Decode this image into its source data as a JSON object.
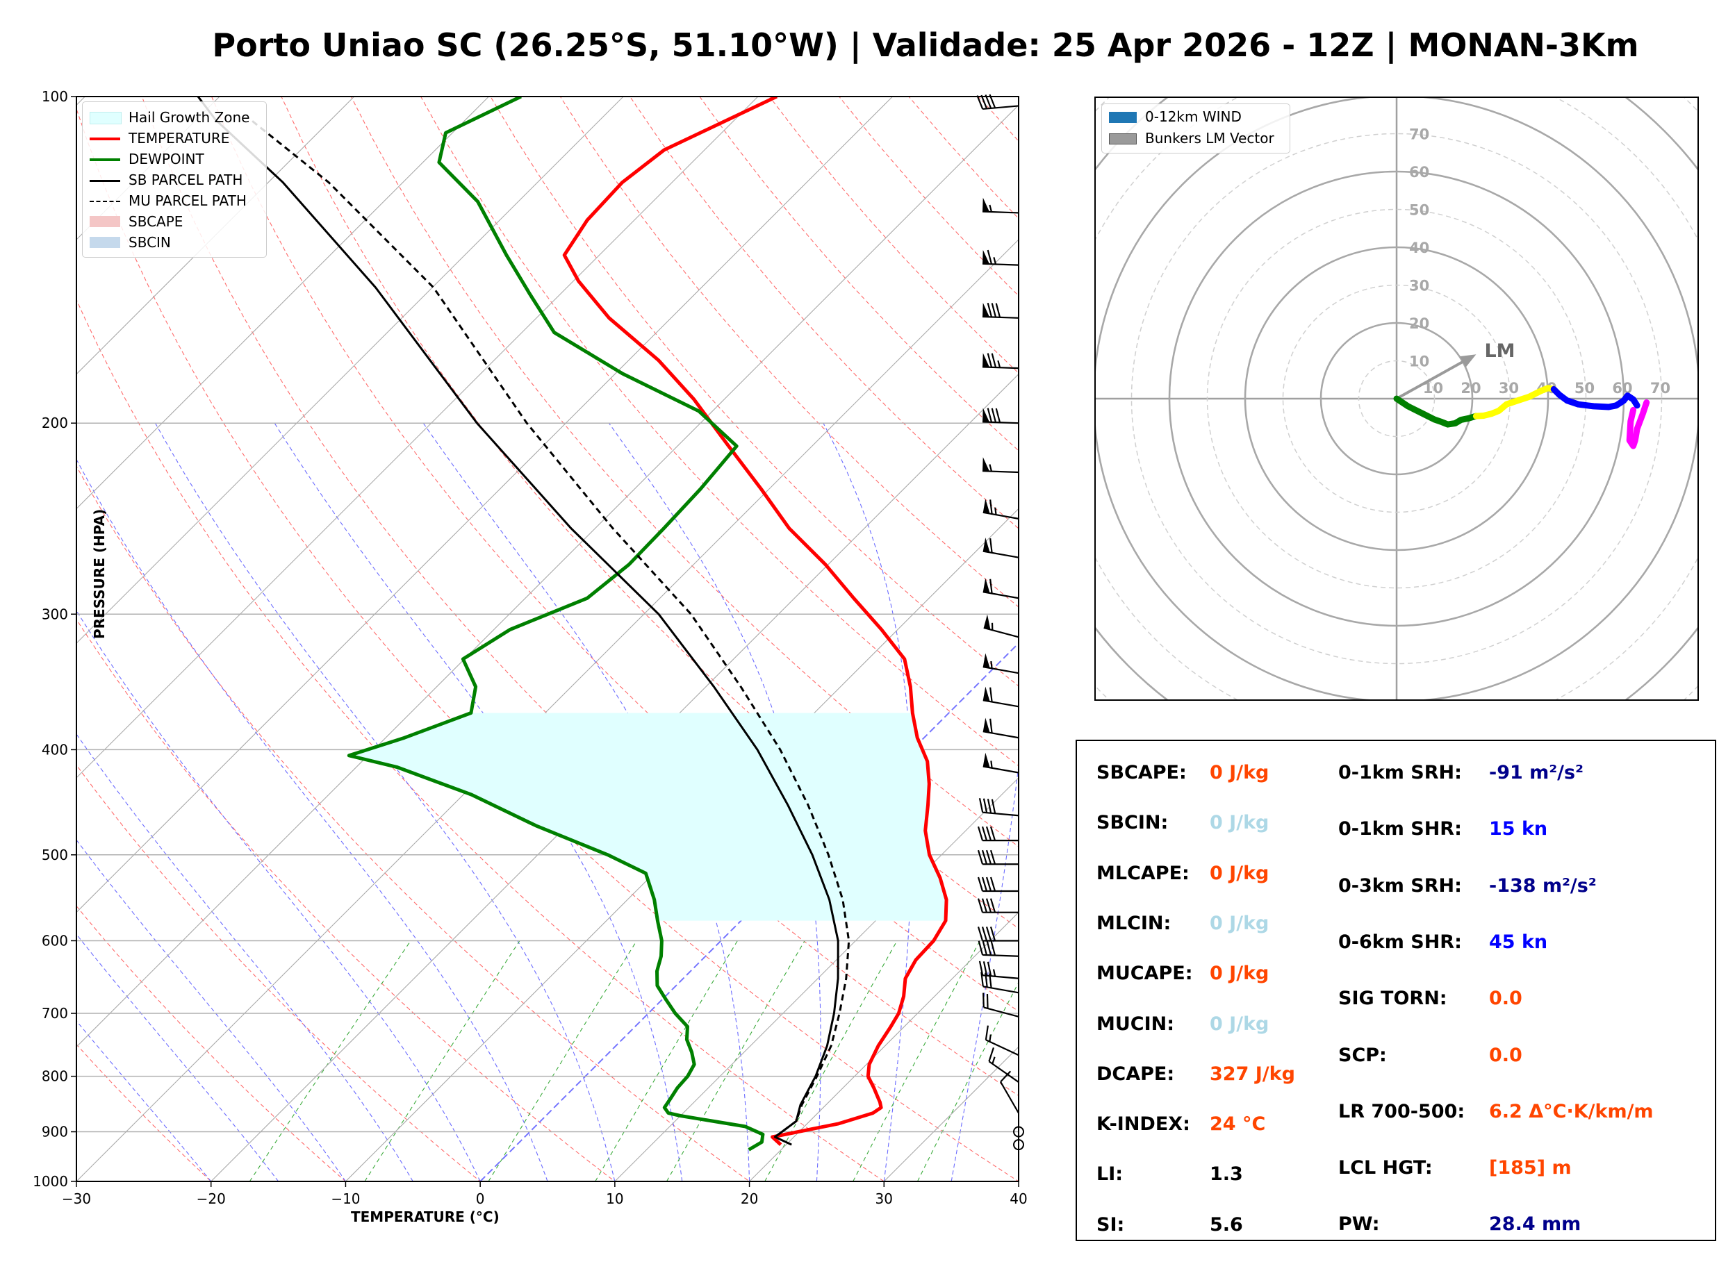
{
  "title": "Porto Uniao SC (26.25°S, 51.10°W) | Validade: 25 Apr 2026 - 12Z | MONAN-3Km",
  "chart_data": [
    {
      "type": "line",
      "kind": "skew-t",
      "xlabel": "TEMPERATURE (°C)",
      "ylabel": "PRESSURE (HPA)",
      "xlim": [
        -30,
        40
      ],
      "ylim": [
        1000,
        100
      ],
      "y_scale": "log",
      "x_ticks": [
        "−30",
        "−20",
        "−10",
        "0",
        "10",
        "20",
        "30",
        "40"
      ],
      "y_ticks": [
        "1000",
        "900",
        "800",
        "700",
        "600",
        "500",
        "400",
        "300",
        "200",
        "100"
      ],
      "grid": true,
      "legend_position": "top-left",
      "legend": [
        {
          "label": "Hail Growth Zone",
          "color": "#e0ffff",
          "style": "fill"
        },
        {
          "label": "TEMPERATURE",
          "color": "#ff0000",
          "style": "line"
        },
        {
          "label": "DEWPOINT",
          "color": "#008000",
          "style": "line"
        },
        {
          "label": "SB PARCEL PATH",
          "color": "#000000",
          "style": "line"
        },
        {
          "label": "MU PARCEL PATH",
          "color": "#000000",
          "style": "dashed"
        },
        {
          "label": "SBCAPE",
          "color": "#f4c6c6",
          "style": "fill"
        },
        {
          "label": "SBCIN",
          "color": "#c5d9ec",
          "style": "fill"
        }
      ],
      "series": [
        {
          "name": "TEMPERATURE",
          "color": "#ff0000",
          "points": [
            [
              19.6,
              925
            ],
            [
              18.4,
              910
            ],
            [
              22.3,
              885
            ],
            [
              24.1,
              865
            ],
            [
              24.3,
              855
            ],
            [
              23.8,
              845
            ],
            [
              23.5,
              840
            ],
            [
              22.3,
              820
            ],
            [
              21.0,
              800
            ],
            [
              20.2,
              780
            ],
            [
              19.5,
              750
            ],
            [
              19.0,
              720
            ],
            [
              18.6,
              700
            ],
            [
              17.7,
              675
            ],
            [
              16.5,
              650
            ],
            [
              15.9,
              625
            ],
            [
              15.8,
              600
            ],
            [
              15.2,
              575
            ],
            [
              13.7,
              550
            ],
            [
              11.6,
              525
            ],
            [
              9.1,
              500
            ],
            [
              7.0,
              475
            ],
            [
              5.3,
              450
            ],
            [
              3.8,
              430
            ],
            [
              2.0,
              410
            ],
            [
              -0.5,
              390
            ],
            [
              -2.7,
              370
            ],
            [
              -4.8,
              350
            ],
            [
              -7.3,
              330
            ],
            [
              -11.2,
              310
            ],
            [
              -15.6,
              290
            ],
            [
              -20.2,
              270
            ],
            [
              -25.6,
              250
            ],
            [
              -30.6,
              230
            ],
            [
              -36.2,
              210
            ],
            [
              -42.3,
              190
            ],
            [
              -47.8,
              175
            ],
            [
              -54.6,
              160
            ],
            [
              -59.6,
              148
            ],
            [
              -62.6,
              140
            ],
            [
              -63.5,
              130
            ],
            [
              -63.7,
              120
            ],
            [
              -63.0,
              112
            ],
            [
              -60.5,
              105
            ],
            [
              -58.6,
              100
            ]
          ]
        },
        {
          "name": "DEWPOINT",
          "color": "#008000",
          "points": [
            [
              17.6,
              935
            ],
            [
              18.0,
              920
            ],
            [
              17.5,
              905
            ],
            [
              15.6,
              890
            ],
            [
              10.0,
              870
            ],
            [
              8.9,
              865
            ],
            [
              8.2,
              855
            ],
            [
              8.0,
              840
            ],
            [
              7.7,
              820
            ],
            [
              7.6,
              800
            ],
            [
              7.2,
              780
            ],
            [
              6.1,
              760
            ],
            [
              4.8,
              740
            ],
            [
              3.9,
              720
            ],
            [
              2.0,
              700
            ],
            [
              0.3,
              680
            ],
            [
              -1.4,
              660
            ],
            [
              -2.5,
              640
            ],
            [
              -3.3,
              620
            ],
            [
              -4.4,
              600
            ],
            [
              -6.2,
              575
            ],
            [
              -8.0,
              550
            ],
            [
              -10.6,
              520
            ],
            [
              -14.8,
              500
            ],
            [
              -22.3,
              470
            ],
            [
              -29.4,
              440
            ],
            [
              -37.0,
              415
            ],
            [
              -41.4,
              405
            ],
            [
              -38.6,
              390
            ],
            [
              -35.5,
              370
            ],
            [
              -37.1,
              350
            ],
            [
              -40.1,
              330
            ],
            [
              -38.8,
              310
            ],
            [
              -35.4,
              290
            ],
            [
              -34.8,
              270
            ],
            [
              -34.9,
              250
            ],
            [
              -35.1,
              230
            ],
            [
              -35.6,
              210
            ],
            [
              -41.0,
              195
            ],
            [
              -49.5,
              180
            ],
            [
              -57.6,
              165
            ],
            [
              -62.3,
              152
            ],
            [
              -66.9,
              140
            ],
            [
              -73.0,
              125
            ],
            [
              -78.8,
              115
            ],
            [
              -80.5,
              108
            ],
            [
              -77.6,
              100
            ]
          ]
        },
        {
          "name": "SB PARCEL PATH",
          "color": "#000000",
          "points": [
            [
              20.4,
              925
            ],
            [
              18.6,
              910
            ],
            [
              19.0,
              880
            ],
            [
              18.1,
              850
            ],
            [
              17.1,
              800
            ],
            [
              15.7,
              750
            ],
            [
              13.8,
              700
            ],
            [
              11.5,
              650
            ],
            [
              8.7,
              600
            ],
            [
              5.0,
              550
            ],
            [
              0.4,
              500
            ],
            [
              -5.1,
              450
            ],
            [
              -11.5,
              400
            ],
            [
              -19.4,
              350
            ],
            [
              -28.9,
              300
            ],
            [
              -41.8,
              250
            ],
            [
              -56.6,
              200
            ],
            [
              -74.2,
              150
            ],
            [
              -88.9,
              120
            ],
            [
              -98.6,
              105
            ],
            [
              -101.6,
              100
            ]
          ]
        },
        {
          "name": "MU PARCEL PATH",
          "color": "#000000",
          "style": "dashed",
          "points": [
            [
              18.6,
              910
            ],
            [
              19.0,
              880
            ],
            [
              18.2,
              850
            ],
            [
              17.2,
              800
            ],
            [
              16.0,
              750
            ],
            [
              14.2,
              700
            ],
            [
              12.1,
              650
            ],
            [
              9.5,
              600
            ],
            [
              6.0,
              550
            ],
            [
              1.6,
              500
            ],
            [
              -3.6,
              450
            ],
            [
              -9.8,
              400
            ],
            [
              -17.4,
              350
            ],
            [
              -26.5,
              300
            ],
            [
              -38.7,
              250
            ],
            [
              -52.9,
              200
            ],
            [
              -69.9,
              150
            ],
            [
              -85.5,
              120
            ],
            [
              -96.0,
              105
            ]
          ]
        }
      ],
      "hail_growth_zone": {
        "top_hpa": 370,
        "bottom_hpa": 575,
        "color": "#e0ffff"
      },
      "wind_barbs": [
        {
          "p": 925,
          "type": "calm"
        },
        {
          "p": 900,
          "type": "calm"
        },
        {
          "p": 865,
          "dir": 330,
          "speed": 12
        },
        {
          "p": 810,
          "dir": 305,
          "speed": 15
        },
        {
          "p": 765,
          "dir": 295,
          "speed": 15
        },
        {
          "p": 705,
          "dir": 285,
          "speed": 20
        },
        {
          "p": 670,
          "dir": 280,
          "speed": 30
        },
        {
          "p": 650,
          "dir": 275,
          "speed": 35
        },
        {
          "p": 620,
          "dir": 272,
          "speed": 40
        },
        {
          "p": 600,
          "dir": 270,
          "speed": 40
        },
        {
          "p": 565,
          "dir": 270,
          "speed": 40
        },
        {
          "p": 540,
          "dir": 270,
          "speed": 40
        },
        {
          "p": 510,
          "dir": 270,
          "speed": 40
        },
        {
          "p": 485,
          "dir": 270,
          "speed": 40
        },
        {
          "p": 460,
          "dir": 275,
          "speed": 40
        },
        {
          "p": 420,
          "dir": 280,
          "speed": 55
        },
        {
          "p": 390,
          "dir": 280,
          "speed": 60
        },
        {
          "p": 365,
          "dir": 280,
          "speed": 60
        },
        {
          "p": 340,
          "dir": 280,
          "speed": 55
        },
        {
          "p": 315,
          "dir": 285,
          "speed": 55
        },
        {
          "p": 290,
          "dir": 280,
          "speed": 60
        },
        {
          "p": 266,
          "dir": 280,
          "speed": 60
        },
        {
          "p": 245,
          "dir": 280,
          "speed": 65
        },
        {
          "p": 222,
          "dir": 272,
          "speed": 55
        },
        {
          "p": 200,
          "dir": 272,
          "speed": 80
        },
        {
          "p": 178,
          "dir": 272,
          "speed": 75
        },
        {
          "p": 160,
          "dir": 272,
          "speed": 80
        },
        {
          "p": 143,
          "dir": 272,
          "speed": 65
        },
        {
          "p": 128,
          "dir": 272,
          "speed": 55
        },
        {
          "p": 102,
          "dir": 265,
          "speed": 40
        }
      ]
    },
    {
      "type": "line",
      "kind": "hodograph",
      "rlim": [
        0,
        80
      ],
      "ring_labels": [
        "10",
        "20",
        "30",
        "40",
        "50",
        "60",
        "70"
      ],
      "axis_labels_x": [
        "10",
        "20",
        "30",
        "40",
        "50",
        "60",
        "70"
      ],
      "legend_position": "top-left",
      "legend": [
        {
          "label": "0-12km WIND",
          "color": "#1f77b4"
        },
        {
          "label": "Bunkers LM Vector",
          "color": "#9a9a9a"
        }
      ],
      "bunkers_lm": {
        "label": "LM",
        "u": 21.0,
        "v": 11.7
      },
      "series": [
        {
          "name": "0-3km",
          "color": "#008000",
          "points": [
            [
              0,
              0
            ],
            [
              3,
              -2
            ],
            [
              7,
              -4
            ],
            [
              10,
              -5.5
            ],
            [
              12,
              -6.2
            ],
            [
              13.5,
              -6.8
            ],
            [
              15.5,
              -6.5
            ],
            [
              17,
              -5.6
            ],
            [
              19,
              -5.2
            ],
            [
              21,
              -4.6
            ]
          ]
        },
        {
          "name": "3-6km",
          "color": "#ffff00",
          "points": [
            [
              21,
              -4.6
            ],
            [
              23,
              -4.5
            ],
            [
              25,
              -4
            ],
            [
              27,
              -3.2
            ],
            [
              29,
              -1.5
            ],
            [
              32,
              -0.5
            ],
            [
              35,
              0.5
            ],
            [
              38,
              2
            ],
            [
              40,
              2.8
            ],
            [
              41.5,
              2.5
            ]
          ]
        },
        {
          "name": "6-9km",
          "color": "#0000ff",
          "points": [
            [
              41.5,
              2.5
            ],
            [
              43,
              1
            ],
            [
              45,
              -0.5
            ],
            [
              48,
              -1.5
            ],
            [
              52,
              -2
            ],
            [
              56,
              -2.2
            ],
            [
              58,
              -1.8
            ],
            [
              60,
              -0.5
            ],
            [
              61,
              0.8
            ],
            [
              62.5,
              -0.2
            ],
            [
              63.5,
              -1.8
            ]
          ]
        },
        {
          "name": "9-12km",
          "color": "#ff00ff",
          "points": [
            [
              66,
              -1
            ],
            [
              65,
              -4
            ],
            [
              63.5,
              -8
            ],
            [
              63,
              -11
            ],
            [
              62.5,
              -12.5
            ],
            [
              61.5,
              -11
            ],
            [
              61.8,
              -6
            ],
            [
              62.5,
              -3
            ]
          ]
        }
      ]
    }
  ],
  "params": {
    "left": [
      {
        "label": "SBCAPE:",
        "value": "0 J/kg",
        "color": "#ff4500"
      },
      {
        "label": "SBCIN:",
        "value": "0 J/kg",
        "color": "#add8e6"
      },
      {
        "label": "MLCAPE:",
        "value": "0 J/kg",
        "color": "#ff4500"
      },
      {
        "label": "MLCIN:",
        "value": "0 J/kg",
        "color": "#add8e6"
      },
      {
        "label": "MUCAPE:",
        "value": "0 J/kg",
        "color": "#ff4500"
      },
      {
        "label": "MUCIN:",
        "value": "0 J/kg",
        "color": "#add8e6"
      },
      {
        "label": "DCAPE:",
        "value": "327 J/kg",
        "color": "#ff4500"
      },
      {
        "label": "K-INDEX:",
        "value": "24 °C",
        "color": "#ff4500"
      },
      {
        "label": "LI:",
        "value": "1.3",
        "color": "#000000"
      },
      {
        "label": "SI:",
        "value": "5.6",
        "color": "#000000"
      }
    ],
    "right": [
      {
        "label": "0-1km SRH:",
        "value": "-91 m²/s²",
        "color": "#00008b"
      },
      {
        "label": "0-1km SHR:",
        "value": "15 kn",
        "color": "#0000ff"
      },
      {
        "label": "0-3km SRH:",
        "value": "-138 m²/s²",
        "color": "#00008b"
      },
      {
        "label": "0-6km SHR:",
        "value": "45 kn",
        "color": "#0000ff"
      },
      {
        "label": "SIG TORN:",
        "value": "0.0",
        "color": "#ff4500"
      },
      {
        "label": "SCP:",
        "value": "0.0",
        "color": "#ff4500"
      },
      {
        "label": "LR 700-500:",
        "value": "6.2 Δ°C·K/km/m",
        "color": "#ff4500"
      },
      {
        "label": "LCL HGT:",
        "value": "[185] m",
        "color": "#ff4500"
      },
      {
        "label": "PW:",
        "value": "28.4 mm",
        "color": "#00008b"
      }
    ]
  }
}
